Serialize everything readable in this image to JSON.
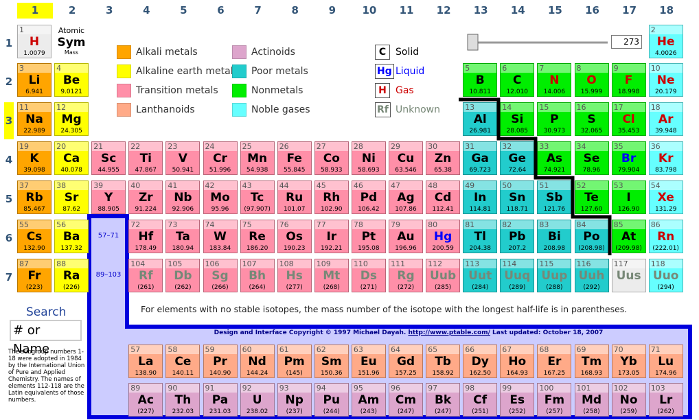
{
  "column_headers": [
    1,
    2,
    3,
    4,
    5,
    6,
    7,
    8,
    9,
    10,
    11,
    12,
    13,
    14,
    15,
    16,
    17,
    18
  ],
  "row_headers": [
    1,
    2,
    3,
    4,
    5,
    6,
    7
  ],
  "highlight": {
    "group": 1,
    "period": 3
  },
  "key": {
    "number": "Atomic",
    "symbol": "Sym",
    "mass": "Mass"
  },
  "categories": [
    {
      "name": "Alkali metals",
      "color": "#ffa500"
    },
    {
      "name": "Alkaline earth metals",
      "color": "#ffff00"
    },
    {
      "name": "Transition metals",
      "color": "#ff8fa8"
    },
    {
      "name": "Lanthanoids",
      "color": "#ffaa88"
    },
    {
      "name": "Actinoids",
      "color": "#dda5cc"
    },
    {
      "name": "Poor metals",
      "color": "#22cccc"
    },
    {
      "name": "Nonmetals",
      "color": "#00ee00"
    },
    {
      "name": "Noble gases",
      "color": "#66ffff"
    }
  ],
  "states": [
    {
      "symbol": "C",
      "name": "Solid",
      "color": "#000000"
    },
    {
      "symbol": "Hg",
      "name": "Liquid",
      "color": "#0000ff"
    },
    {
      "symbol": "H",
      "name": "Gas",
      "color": "#cc0000"
    },
    {
      "symbol": "Rf",
      "name": "Unknown",
      "color": "#778877"
    }
  ],
  "temperature": 273,
  "periods": [
    [
      {
        "n": 1,
        "s": "H",
        "m": "1.0079",
        "c": null,
        "st": 2
      },
      null,
      null,
      null,
      null,
      null,
      null,
      null,
      null,
      null,
      null,
      null,
      null,
      null,
      null,
      null,
      null,
      {
        "n": 2,
        "s": "He",
        "m": "4.0026",
        "c": 7,
        "st": 2
      }
    ],
    [
      {
        "n": 3,
        "s": "Li",
        "m": "6.941",
        "c": 0,
        "st": 0
      },
      {
        "n": 4,
        "s": "Be",
        "m": "9.0121",
        "c": 1,
        "st": 0
      },
      null,
      null,
      null,
      null,
      null,
      null,
      null,
      null,
      null,
      null,
      {
        "n": 5,
        "s": "B",
        "m": "10.811",
        "c": 6,
        "st": 0
      },
      {
        "n": 6,
        "s": "C",
        "m": "12.010",
        "c": 6,
        "st": 0
      },
      {
        "n": 7,
        "s": "N",
        "m": "14.006",
        "c": 6,
        "st": 2
      },
      {
        "n": 8,
        "s": "O",
        "m": "15.999",
        "c": 6,
        "st": 2
      },
      {
        "n": 9,
        "s": "F",
        "m": "18.998",
        "c": 6,
        "st": 2
      },
      {
        "n": 10,
        "s": "Ne",
        "m": "20.179",
        "c": 7,
        "st": 2
      }
    ],
    [
      {
        "n": 11,
        "s": "Na",
        "m": "22.989",
        "c": 0,
        "st": 0
      },
      {
        "n": 12,
        "s": "Mg",
        "m": "24.305",
        "c": 1,
        "st": 0
      },
      null,
      null,
      null,
      null,
      null,
      null,
      null,
      null,
      null,
      null,
      {
        "n": 13,
        "s": "Al",
        "m": "26.981",
        "c": 5,
        "st": 0
      },
      {
        "n": 14,
        "s": "Si",
        "m": "28.085",
        "c": 6,
        "st": 0
      },
      {
        "n": 15,
        "s": "P",
        "m": "30.973",
        "c": 6,
        "st": 0
      },
      {
        "n": 16,
        "s": "S",
        "m": "32.065",
        "c": 6,
        "st": 0
      },
      {
        "n": 17,
        "s": "Cl",
        "m": "35.453",
        "c": 6,
        "st": 2
      },
      {
        "n": 18,
        "s": "Ar",
        "m": "39.948",
        "c": 7,
        "st": 2
      }
    ],
    [
      {
        "n": 19,
        "s": "K",
        "m": "39.098",
        "c": 0,
        "st": 0
      },
      {
        "n": 20,
        "s": "Ca",
        "m": "40.078",
        "c": 1,
        "st": 0
      },
      {
        "n": 21,
        "s": "Sc",
        "m": "44.955",
        "c": 2,
        "st": 0
      },
      {
        "n": 22,
        "s": "Ti",
        "m": "47.867",
        "c": 2,
        "st": 0
      },
      {
        "n": 23,
        "s": "V",
        "m": "50.941",
        "c": 2,
        "st": 0
      },
      {
        "n": 24,
        "s": "Cr",
        "m": "51.996",
        "c": 2,
        "st": 0
      },
      {
        "n": 25,
        "s": "Mn",
        "m": "54.938",
        "c": 2,
        "st": 0
      },
      {
        "n": 26,
        "s": "Fe",
        "m": "55.845",
        "c": 2,
        "st": 0
      },
      {
        "n": 27,
        "s": "Co",
        "m": "58.933",
        "c": 2,
        "st": 0
      },
      {
        "n": 28,
        "s": "Ni",
        "m": "58.693",
        "c": 2,
        "st": 0
      },
      {
        "n": 29,
        "s": "Cu",
        "m": "63.546",
        "c": 2,
        "st": 0
      },
      {
        "n": 30,
        "s": "Zn",
        "m": "65.38",
        "c": 2,
        "st": 0
      },
      {
        "n": 31,
        "s": "Ga",
        "m": "69.723",
        "c": 5,
        "st": 0
      },
      {
        "n": 32,
        "s": "Ge",
        "m": "72.64",
        "c": 5,
        "st": 0
      },
      {
        "n": 33,
        "s": "As",
        "m": "74.921",
        "c": 6,
        "st": 0
      },
      {
        "n": 34,
        "s": "Se",
        "m": "78.96",
        "c": 6,
        "st": 0
      },
      {
        "n": 35,
        "s": "Br",
        "m": "79.904",
        "c": 6,
        "st": 1
      },
      {
        "n": 36,
        "s": "Kr",
        "m": "83.798",
        "c": 7,
        "st": 2
      }
    ],
    [
      {
        "n": 37,
        "s": "Rb",
        "m": "85.467",
        "c": 0,
        "st": 0
      },
      {
        "n": 38,
        "s": "Sr",
        "m": "87.62",
        "c": 1,
        "st": 0
      },
      {
        "n": 39,
        "s": "Y",
        "m": "88.905",
        "c": 2,
        "st": 0
      },
      {
        "n": 40,
        "s": "Zr",
        "m": "91.224",
        "c": 2,
        "st": 0
      },
      {
        "n": 41,
        "s": "Nb",
        "m": "92.906",
        "c": 2,
        "st": 0
      },
      {
        "n": 42,
        "s": "Mo",
        "m": "95.96",
        "c": 2,
        "st": 0
      },
      {
        "n": 43,
        "s": "Tc",
        "m": "(97.907)",
        "c": 2,
        "st": 0
      },
      {
        "n": 44,
        "s": "Ru",
        "m": "101.07",
        "c": 2,
        "st": 0
      },
      {
        "n": 45,
        "s": "Rh",
        "m": "102.90",
        "c": 2,
        "st": 0
      },
      {
        "n": 46,
        "s": "Pd",
        "m": "106.42",
        "c": 2,
        "st": 0
      },
      {
        "n": 47,
        "s": "Ag",
        "m": "107.86",
        "c": 2,
        "st": 0
      },
      {
        "n": 48,
        "s": "Cd",
        "m": "112.41",
        "c": 2,
        "st": 0
      },
      {
        "n": 49,
        "s": "In",
        "m": "114.81",
        "c": 5,
        "st": 0
      },
      {
        "n": 50,
        "s": "Sn",
        "m": "118.71",
        "c": 5,
        "st": 0
      },
      {
        "n": 51,
        "s": "Sb",
        "m": "121.76",
        "c": 5,
        "st": 0
      },
      {
        "n": 52,
        "s": "Te",
        "m": "127.60",
        "c": 6,
        "st": 0
      },
      {
        "n": 53,
        "s": "I",
        "m": "126.90",
        "c": 6,
        "st": 0
      },
      {
        "n": 54,
        "s": "Xe",
        "m": "131.29",
        "c": 7,
        "st": 2
      }
    ],
    [
      {
        "n": 55,
        "s": "Cs",
        "m": "132.90",
        "c": 0,
        "st": 0
      },
      {
        "n": 56,
        "s": "Ba",
        "m": "137.32",
        "c": 1,
        "st": 0
      },
      null,
      {
        "n": 72,
        "s": "Hf",
        "m": "178.49",
        "c": 2,
        "st": 0
      },
      {
        "n": 73,
        "s": "Ta",
        "m": "180.94",
        "c": 2,
        "st": 0
      },
      {
        "n": 74,
        "s": "W",
        "m": "183.84",
        "c": 2,
        "st": 0
      },
      {
        "n": 75,
        "s": "Re",
        "m": "186.20",
        "c": 2,
        "st": 0
      },
      {
        "n": 76,
        "s": "Os",
        "m": "190.23",
        "c": 2,
        "st": 0
      },
      {
        "n": 77,
        "s": "Ir",
        "m": "192.21",
        "c": 2,
        "st": 0
      },
      {
        "n": 78,
        "s": "Pt",
        "m": "195.08",
        "c": 2,
        "st": 0
      },
      {
        "n": 79,
        "s": "Au",
        "m": "196.96",
        "c": 2,
        "st": 0
      },
      {
        "n": 80,
        "s": "Hg",
        "m": "200.59",
        "c": 2,
        "st": 1
      },
      {
        "n": 81,
        "s": "Tl",
        "m": "204.38",
        "c": 5,
        "st": 0
      },
      {
        "n": 82,
        "s": "Pb",
        "m": "207.2",
        "c": 5,
        "st": 0
      },
      {
        "n": 83,
        "s": "Bi",
        "m": "208.98",
        "c": 5,
        "st": 0
      },
      {
        "n": 84,
        "s": "Po",
        "m": "(208.98)",
        "c": 5,
        "st": 0
      },
      {
        "n": 85,
        "s": "At",
        "m": "(209.98)",
        "c": 6,
        "st": 0
      },
      {
        "n": 86,
        "s": "Rn",
        "m": "(222.01)",
        "c": 7,
        "st": 2
      }
    ],
    [
      {
        "n": 87,
        "s": "Fr",
        "m": "(223)",
        "c": 0,
        "st": 0
      },
      {
        "n": 88,
        "s": "Ra",
        "m": "(226)",
        "c": 1,
        "st": 0
      },
      null,
      {
        "n": 104,
        "s": "Rf",
        "m": "(261)",
        "c": 2,
        "st": 3
      },
      {
        "n": 105,
        "s": "Db",
        "m": "(262)",
        "c": 2,
        "st": 3
      },
      {
        "n": 106,
        "s": "Sg",
        "m": "(266)",
        "c": 2,
        "st": 3
      },
      {
        "n": 107,
        "s": "Bh",
        "m": "(264)",
        "c": 2,
        "st": 3
      },
      {
        "n": 108,
        "s": "Hs",
        "m": "(277)",
        "c": 2,
        "st": 3
      },
      {
        "n": 109,
        "s": "Mt",
        "m": "(268)",
        "c": 2,
        "st": 3
      },
      {
        "n": 110,
        "s": "Ds",
        "m": "(271)",
        "c": 2,
        "st": 3
      },
      {
        "n": 111,
        "s": "Rg",
        "m": "(272)",
        "c": 2,
        "st": 3
      },
      {
        "n": 112,
        "s": "Uub",
        "m": "(285)",
        "c": 2,
        "st": 3
      },
      {
        "n": 113,
        "s": "Uut",
        "m": "(284)",
        "c": 5,
        "st": 3
      },
      {
        "n": 114,
        "s": "Uuq",
        "m": "(289)",
        "c": 5,
        "st": 3
      },
      {
        "n": 115,
        "s": "Uup",
        "m": "(288)",
        "c": 5,
        "st": 3
      },
      {
        "n": 116,
        "s": "Uuh",
        "m": "(292)",
        "c": 5,
        "st": 3
      },
      {
        "n": 117,
        "s": "Uus",
        "c": null,
        "st": 3
      },
      {
        "n": 118,
        "s": "Uuo",
        "m": "(294)",
        "c": 7,
        "st": 3
      }
    ]
  ],
  "series_labels": [
    "57–71",
    "89–103"
  ],
  "lanthanoids": [
    {
      "n": 57,
      "s": "La",
      "m": "138.90",
      "c": 3,
      "st": 0
    },
    {
      "n": 58,
      "s": "Ce",
      "m": "140.11",
      "c": 3,
      "st": 0
    },
    {
      "n": 59,
      "s": "Pr",
      "m": "140.90",
      "c": 3,
      "st": 0
    },
    {
      "n": 60,
      "s": "Nd",
      "m": "144.24",
      "c": 3,
      "st": 0
    },
    {
      "n": 61,
      "s": "Pm",
      "m": "(145)",
      "c": 3,
      "st": 0
    },
    {
      "n": 62,
      "s": "Sm",
      "m": "150.36",
      "c": 3,
      "st": 0
    },
    {
      "n": 63,
      "s": "Eu",
      "m": "151.96",
      "c": 3,
      "st": 0
    },
    {
      "n": 64,
      "s": "Gd",
      "m": "157.25",
      "c": 3,
      "st": 0
    },
    {
      "n": 65,
      "s": "Tb",
      "m": "158.92",
      "c": 3,
      "st": 0
    },
    {
      "n": 66,
      "s": "Dy",
      "m": "162.50",
      "c": 3,
      "st": 0
    },
    {
      "n": 67,
      "s": "Ho",
      "m": "164.93",
      "c": 3,
      "st": 0
    },
    {
      "n": 68,
      "s": "Er",
      "m": "167.25",
      "c": 3,
      "st": 0
    },
    {
      "n": 69,
      "s": "Tm",
      "m": "168.93",
      "c": 3,
      "st": 0
    },
    {
      "n": 70,
      "s": "Yb",
      "m": "173.05",
      "c": 3,
      "st": 0
    },
    {
      "n": 71,
      "s": "Lu",
      "m": "174.96",
      "c": 3,
      "st": 0
    }
  ],
  "actinoids": [
    {
      "n": 89,
      "s": "Ac",
      "m": "(227)",
      "c": 4,
      "st": 0
    },
    {
      "n": 90,
      "s": "Th",
      "m": "232.03",
      "c": 4,
      "st": 0
    },
    {
      "n": 91,
      "s": "Pa",
      "m": "231.03",
      "c": 4,
      "st": 0
    },
    {
      "n": 92,
      "s": "U",
      "m": "238.02",
      "c": 4,
      "st": 0
    },
    {
      "n": 93,
      "s": "Np",
      "m": "(237)",
      "c": 4,
      "st": 0
    },
    {
      "n": 94,
      "s": "Pu",
      "m": "(244)",
      "c": 4,
      "st": 0
    },
    {
      "n": 95,
      "s": "Am",
      "m": "(243)",
      "c": 4,
      "st": 0
    },
    {
      "n": 96,
      "s": "Cm",
      "m": "(247)",
      "c": 4,
      "st": 0
    },
    {
      "n": 97,
      "s": "Bk",
      "m": "(247)",
      "c": 4,
      "st": 0
    },
    {
      "n": 98,
      "s": "Cf",
      "m": "(251)",
      "c": 4,
      "st": 0
    },
    {
      "n": 99,
      "s": "Es",
      "m": "(252)",
      "c": 4,
      "st": 0
    },
    {
      "n": 100,
      "s": "Fm",
      "m": "(257)",
      "c": 4,
      "st": 0
    },
    {
      "n": 101,
      "s": "Md",
      "m": "(258)",
      "c": 4,
      "st": 0
    },
    {
      "n": 102,
      "s": "No",
      "m": "(259)",
      "c": 4,
      "st": 0
    },
    {
      "n": 103,
      "s": "Lr",
      "m": "(262)",
      "c": 4,
      "st": 0
    }
  ],
  "note": "For elements with no stable isotopes, the mass number of the isotope with the longest half-life is in parentheses.",
  "credit": {
    "text": "Design and Interface Copyright © 1997 Michael Dayah. ",
    "link": "http://www.ptable.com/",
    "updated": " Last updated: October 18, 2007"
  },
  "search": {
    "title": "Search",
    "placeholder": "# or Name"
  },
  "footnote": "The subgroup numbers 1-18 were adopted in 1984 by the International Union of Pure and Applied Chemistry. The names of elements 112-118 are the Latin equivalents of those numbers."
}
